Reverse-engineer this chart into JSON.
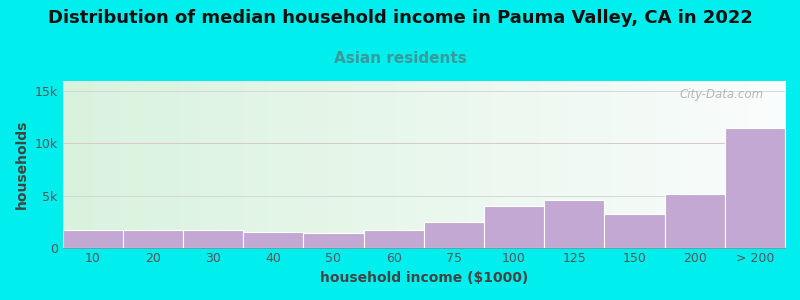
{
  "title": "Distribution of median household income in Pauma Valley, CA in 2022",
  "subtitle": "Asian residents",
  "xlabel": "household income ($1000)",
  "ylabel": "households",
  "background_color": "#00EEEE",
  "bar_color": "#C4A8D4",
  "bar_edge_color": "#b090c0",
  "categories": [
    "10",
    "20",
    "30",
    "40",
    "50",
    "60",
    "75",
    "100",
    "125",
    "150",
    "200",
    "> 200"
  ],
  "values": [
    1700,
    1700,
    1700,
    1500,
    1400,
    1700,
    2500,
    4000,
    4600,
    3200,
    5100,
    11500
  ],
  "ylim": [
    0,
    16000
  ],
  "yticks": [
    0,
    5000,
    10000,
    15000
  ],
  "ytick_labels": [
    "0",
    "5k",
    "10k",
    "15k"
  ],
  "title_fontsize": 13,
  "subtitle_fontsize": 11,
  "subtitle_color": "#3a9a9a",
  "axis_label_fontsize": 10,
  "tick_fontsize": 9,
  "watermark": "City-Data.com",
  "watermark_color": "#aaaaaa",
  "plot_bg_left": "#d8eedd",
  "plot_bg_right": "#f5f8f5"
}
